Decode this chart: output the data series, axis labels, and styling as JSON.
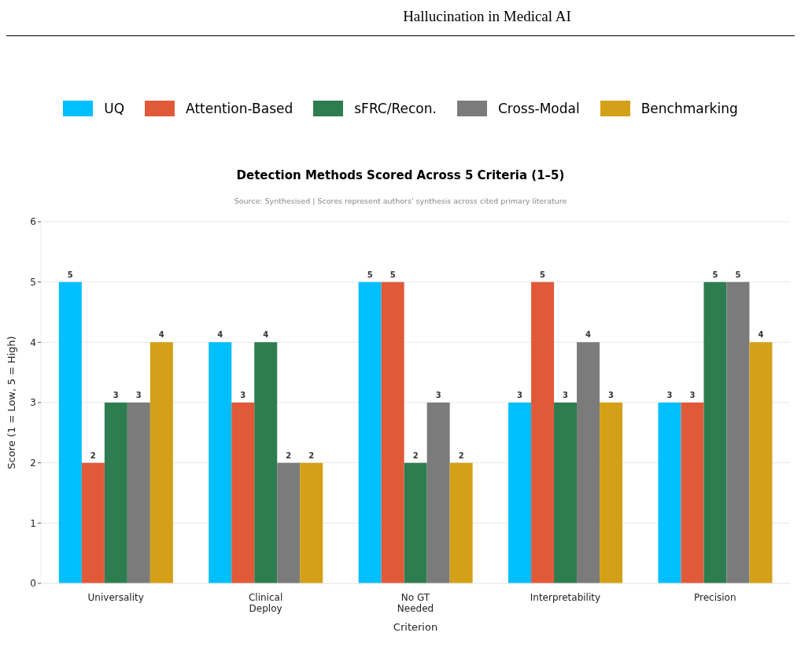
{
  "chart_data": {
    "type": "bar",
    "title": "Detection Methods Scored Across 5 Criteria (1–5)",
    "subtitle": "Source: Synthesised  |  Scores represent authors' synthesis across cited primary literature",
    "xlabel": "Criterion",
    "ylabel": "Score (1 = Low, 5 = High)",
    "annotations": [
      "Hallucination in Medical AI"
    ],
    "categories": [
      "Universality",
      "Clinical\nDeploy",
      "No GT\nNeeded",
      "Interpretability",
      "Precision"
    ],
    "series": [
      {
        "name": "UQ",
        "color": "#00bfff",
        "values": [
          5,
          4,
          5,
          3,
          3
        ]
      },
      {
        "name": "Attention-Based",
        "color": "#e05a3a",
        "values": [
          2,
          3,
          5,
          5,
          3
        ]
      },
      {
        "name": "sFRC/Recon.",
        "color": "#2e7d50",
        "values": [
          3,
          4,
          2,
          3,
          5
        ]
      },
      {
        "name": "Cross-Modal",
        "color": "#7b7b7b",
        "values": [
          3,
          2,
          3,
          4,
          5
        ]
      },
      {
        "name": "Benchmarking",
        "color": "#d4a017",
        "values": [
          4,
          2,
          2,
          3,
          4
        ]
      }
    ],
    "ylim": [
      0,
      6
    ],
    "yticks": [
      0,
      1,
      2,
      3,
      4,
      5,
      6
    ],
    "grid": "y",
    "legend": "top",
    "data_labels": true
  }
}
